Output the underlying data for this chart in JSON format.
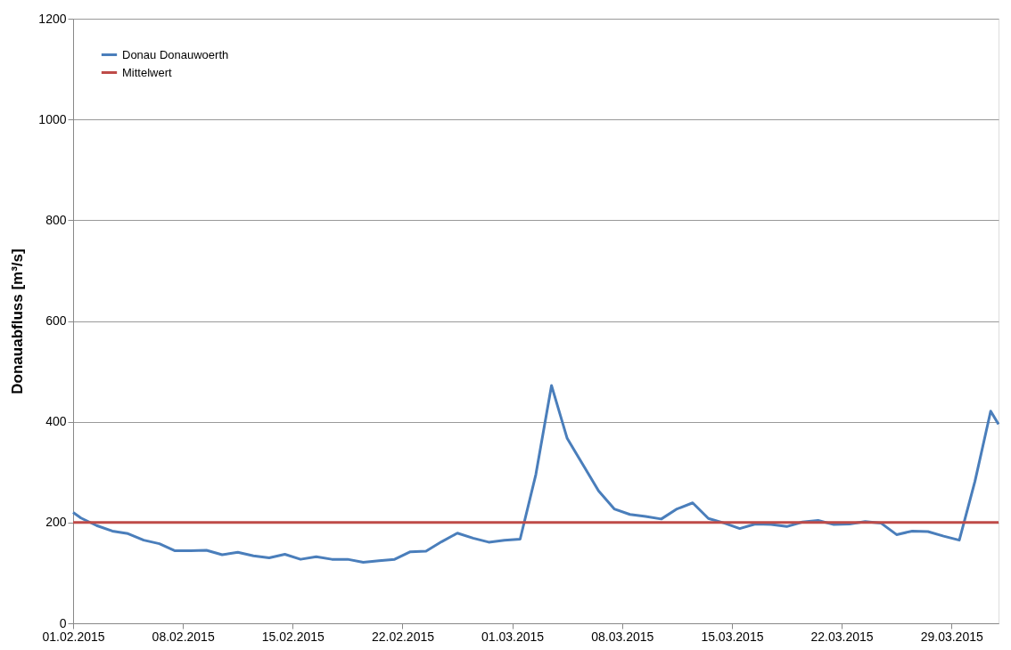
{
  "chart_data": {
    "type": "line",
    "ylabel": "Donauabfluss [m³/s]",
    "xlim": [
      "2015-02-01T00:00",
      "2015-04-01T00:00"
    ],
    "xticks": [
      {
        "value": "2015-02-01",
        "label": "01.02.2015"
      },
      {
        "value": "2015-02-08",
        "label": "08.02.2015"
      },
      {
        "value": "2015-02-15",
        "label": "15.02.2015"
      },
      {
        "value": "2015-02-22",
        "label": "22.02.2015"
      },
      {
        "value": "2015-03-01",
        "label": "01.03.2015"
      },
      {
        "value": "2015-03-08",
        "label": "08.03.2015"
      },
      {
        "value": "2015-03-15",
        "label": "15.03.2015"
      },
      {
        "value": "2015-03-22",
        "label": "22.03.2015"
      },
      {
        "value": "2015-03-29",
        "label": "29.03.2015"
      }
    ],
    "ylim": [
      0,
      1200
    ],
    "yticks": [
      0,
      200,
      400,
      600,
      800,
      1000,
      1200
    ],
    "grid": "y",
    "legend": "top left",
    "series": [
      {
        "name": "Donau Donauwoerth",
        "color": "#4a7ebb",
        "x": [
          "2015-02-01T00:00",
          "2015-02-01T12:00",
          "2015-02-02T12:00",
          "2015-02-03T12:00",
          "2015-02-04T12:00",
          "2015-02-05T12:00",
          "2015-02-06T12:00",
          "2015-02-07T12:00",
          "2015-02-08T12:00",
          "2015-02-09T12:00",
          "2015-02-10T12:00",
          "2015-02-11T12:00",
          "2015-02-12T12:00",
          "2015-02-13T12:00",
          "2015-02-14T12:00",
          "2015-02-15T12:00",
          "2015-02-16T12:00",
          "2015-02-17T12:00",
          "2015-02-18T12:00",
          "2015-02-19T12:00",
          "2015-02-20T12:00",
          "2015-02-21T12:00",
          "2015-02-22T12:00",
          "2015-02-23T12:00",
          "2015-02-24T12:00",
          "2015-02-25T12:00",
          "2015-02-26T12:00",
          "2015-02-27T12:00",
          "2015-02-28T12:00",
          "2015-03-01T12:00",
          "2015-03-02T12:00",
          "2015-03-03T12:00",
          "2015-03-04T12:00",
          "2015-03-05T12:00",
          "2015-03-06T12:00",
          "2015-03-07T12:00",
          "2015-03-08T12:00",
          "2015-03-09T12:00",
          "2015-03-10T12:00",
          "2015-03-11T12:00",
          "2015-03-12T12:00",
          "2015-03-13T12:00",
          "2015-03-14T12:00",
          "2015-03-15T12:00",
          "2015-03-16T12:00",
          "2015-03-17T12:00",
          "2015-03-18T12:00",
          "2015-03-19T12:00",
          "2015-03-20T12:00",
          "2015-03-21T12:00",
          "2015-03-22T12:00",
          "2015-03-23T12:00",
          "2015-03-24T12:00",
          "2015-03-25T12:00",
          "2015-03-26T12:00",
          "2015-03-27T12:00",
          "2015-03-28T12:00",
          "2015-03-29T12:00",
          "2015-03-30T12:00",
          "2015-03-31T12:00",
          "2015-04-01T00:00"
        ],
        "values": [
          220,
          209,
          194,
          183,
          178,
          165,
          158,
          144,
          144,
          145,
          136,
          141,
          134,
          130,
          137,
          127,
          132,
          127,
          127,
          121,
          124,
          127,
          142,
          143,
          162,
          179,
          169,
          161,
          165,
          167,
          295,
          472,
          367,
          315,
          263,
          227,
          216,
          212,
          207,
          227,
          239,
          208,
          199,
          188,
          197,
          196,
          192,
          201,
          204,
          196,
          197,
          202,
          199,
          176,
          183,
          182,
          173,
          165,
          282,
          421,
          395
        ]
      },
      {
        "name": "Mittelwert",
        "color": "#be4b48",
        "x": [
          "2015-02-01T00:00",
          "2015-04-01T00:00"
        ],
        "values": [
          200,
          200
        ]
      }
    ]
  }
}
